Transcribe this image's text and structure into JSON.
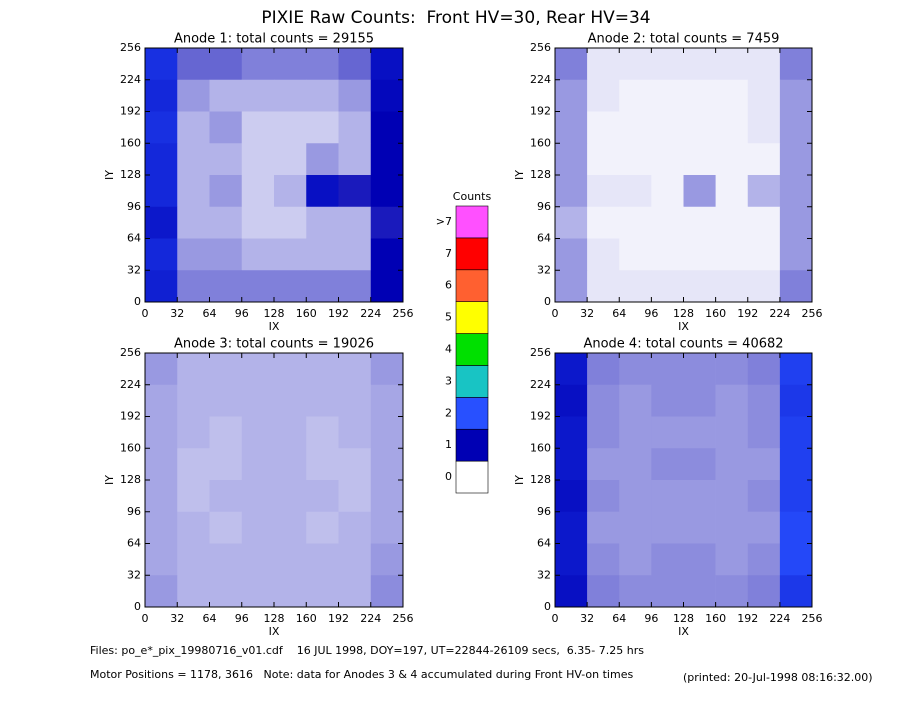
{
  "title": "PIXIE Raw Counts:  Front HV=30, Rear HV=34",
  "footer": {
    "files": "Files: po_e*_pix_19980716_v01.cdf    16 JUL 1998, DOY=197, UT=22844-26109 secs,  6.35- 7.25 hrs",
    "motor": "Motor Positions = 1178, 3616   Note: data for Anodes 3 & 4 accumulated during Front HV-on times",
    "printed": "(printed: 20-Jul-1998 08:16:32.00)"
  },
  "colorbar": {
    "title": "Counts",
    "ticks": [
      0,
      1,
      2,
      3,
      4,
      5,
      6,
      7,
      {
        "value": 8,
        "label": ">7"
      }
    ],
    "colors": [
      "#ffffff",
      "#0000b4",
      "#2850ff",
      "#18c4c4",
      "#00e000",
      "#ffff00",
      "#ff6030",
      "#ff0000",
      "#ff50ff"
    ]
  },
  "chart_data": [
    {
      "type": "heatmap",
      "title": "Anode 1: total counts = 29155",
      "xlabel": "IX",
      "ylabel": "IY",
      "xlim": [
        0,
        256
      ],
      "ylim": [
        0,
        256
      ],
      "xticks": [
        0,
        32,
        64,
        96,
        128,
        160,
        192,
        224,
        256
      ],
      "yticks": [
        0,
        32,
        64,
        96,
        128,
        160,
        192,
        224,
        256
      ],
      "values": [
        [
          1.6,
          0.6,
          0.6,
          0.5,
          0.5,
          0.5,
          0.6,
          1.2
        ],
        [
          1.5,
          0.4,
          0.3,
          0.3,
          0.3,
          0.3,
          0.4,
          1.1
        ],
        [
          1.6,
          0.3,
          0.4,
          0.2,
          0.2,
          0.2,
          0.3,
          1.0
        ],
        [
          1.5,
          0.3,
          0.3,
          0.2,
          0.2,
          0.4,
          0.3,
          1.0
        ],
        [
          1.5,
          0.3,
          0.4,
          0.2,
          0.3,
          1.2,
          0.9,
          1.0
        ],
        [
          1.3,
          0.3,
          0.3,
          0.2,
          0.2,
          0.3,
          0.3,
          0.9
        ],
        [
          1.5,
          0.4,
          0.4,
          0.3,
          0.3,
          0.3,
          0.3,
          1.0
        ],
        [
          1.4,
          0.5,
          0.5,
          0.5,
          0.5,
          0.5,
          0.5,
          1.0
        ]
      ]
    },
    {
      "type": "heatmap",
      "title": "Anode 2: total counts = 7459",
      "xlabel": "IX",
      "ylabel": "IY",
      "xlim": [
        0,
        256
      ],
      "ylim": [
        0,
        256
      ],
      "xticks": [
        0,
        32,
        64,
        96,
        128,
        160,
        192,
        224,
        256
      ],
      "yticks": [
        0,
        32,
        64,
        96,
        128,
        160,
        192,
        224,
        256
      ],
      "values": [
        [
          0.5,
          0.1,
          0.1,
          0.1,
          0.1,
          0.1,
          0.1,
          0.5
        ],
        [
          0.4,
          0.1,
          0.05,
          0.05,
          0.05,
          0.05,
          0.1,
          0.4
        ],
        [
          0.4,
          0.05,
          0.05,
          0.05,
          0.05,
          0.05,
          0.1,
          0.4
        ],
        [
          0.4,
          0.05,
          0.05,
          0.05,
          0.05,
          0.05,
          0.05,
          0.4
        ],
        [
          0.4,
          0.1,
          0.1,
          0.05,
          0.4,
          0.05,
          0.3,
          0.4
        ],
        [
          0.3,
          0.05,
          0.05,
          0.05,
          0.05,
          0.05,
          0.05,
          0.4
        ],
        [
          0.4,
          0.1,
          0.05,
          0.05,
          0.05,
          0.05,
          0.05,
          0.4
        ],
        [
          0.4,
          0.1,
          0.1,
          0.1,
          0.1,
          0.1,
          0.1,
          0.5
        ]
      ]
    },
    {
      "type": "heatmap",
      "title": "Anode 3: total counts = 19026",
      "xlabel": "IX",
      "ylabel": "IY",
      "xlim": [
        0,
        256
      ],
      "ylim": [
        0,
        256
      ],
      "xticks": [
        0,
        32,
        64,
        96,
        128,
        160,
        192,
        224,
        256
      ],
      "yticks": [
        0,
        32,
        64,
        96,
        128,
        160,
        192,
        224,
        256
      ],
      "values": [
        [
          0.4,
          0.3,
          0.3,
          0.3,
          0.3,
          0.3,
          0.3,
          0.4
        ],
        [
          0.35,
          0.3,
          0.3,
          0.3,
          0.3,
          0.3,
          0.3,
          0.35
        ],
        [
          0.35,
          0.3,
          0.25,
          0.3,
          0.3,
          0.25,
          0.3,
          0.35
        ],
        [
          0.35,
          0.25,
          0.25,
          0.3,
          0.3,
          0.25,
          0.25,
          0.35
        ],
        [
          0.35,
          0.25,
          0.3,
          0.3,
          0.3,
          0.3,
          0.25,
          0.35
        ],
        [
          0.35,
          0.3,
          0.25,
          0.3,
          0.3,
          0.25,
          0.3,
          0.35
        ],
        [
          0.35,
          0.3,
          0.3,
          0.3,
          0.3,
          0.3,
          0.3,
          0.4
        ],
        [
          0.4,
          0.3,
          0.3,
          0.3,
          0.3,
          0.3,
          0.3,
          0.45
        ]
      ]
    },
    {
      "type": "heatmap",
      "title": "Anode 4: total counts = 40682",
      "xlabel": "IX",
      "ylabel": "IY",
      "xlim": [
        0,
        256
      ],
      "ylim": [
        0,
        256
      ],
      "xticks": [
        0,
        32,
        64,
        96,
        128,
        160,
        192,
        224,
        256
      ],
      "yticks": [
        0,
        32,
        64,
        96,
        128,
        160,
        192,
        224,
        256
      ],
      "values": [
        [
          1.3,
          0.5,
          0.45,
          0.45,
          0.45,
          0.45,
          0.5,
          1.8
        ],
        [
          1.2,
          0.45,
          0.4,
          0.45,
          0.45,
          0.4,
          0.45,
          1.7
        ],
        [
          1.3,
          0.45,
          0.4,
          0.4,
          0.4,
          0.4,
          0.45,
          1.8
        ],
        [
          1.3,
          0.4,
          0.4,
          0.45,
          0.45,
          0.4,
          0.4,
          1.8
        ],
        [
          1.2,
          0.45,
          0.4,
          0.4,
          0.4,
          0.4,
          0.45,
          1.8
        ],
        [
          1.3,
          0.4,
          0.4,
          0.4,
          0.4,
          0.4,
          0.4,
          1.9
        ],
        [
          1.3,
          0.45,
          0.4,
          0.45,
          0.45,
          0.4,
          0.45,
          1.9
        ],
        [
          1.2,
          0.5,
          0.45,
          0.45,
          0.45,
          0.45,
          0.5,
          1.7
        ]
      ]
    }
  ]
}
